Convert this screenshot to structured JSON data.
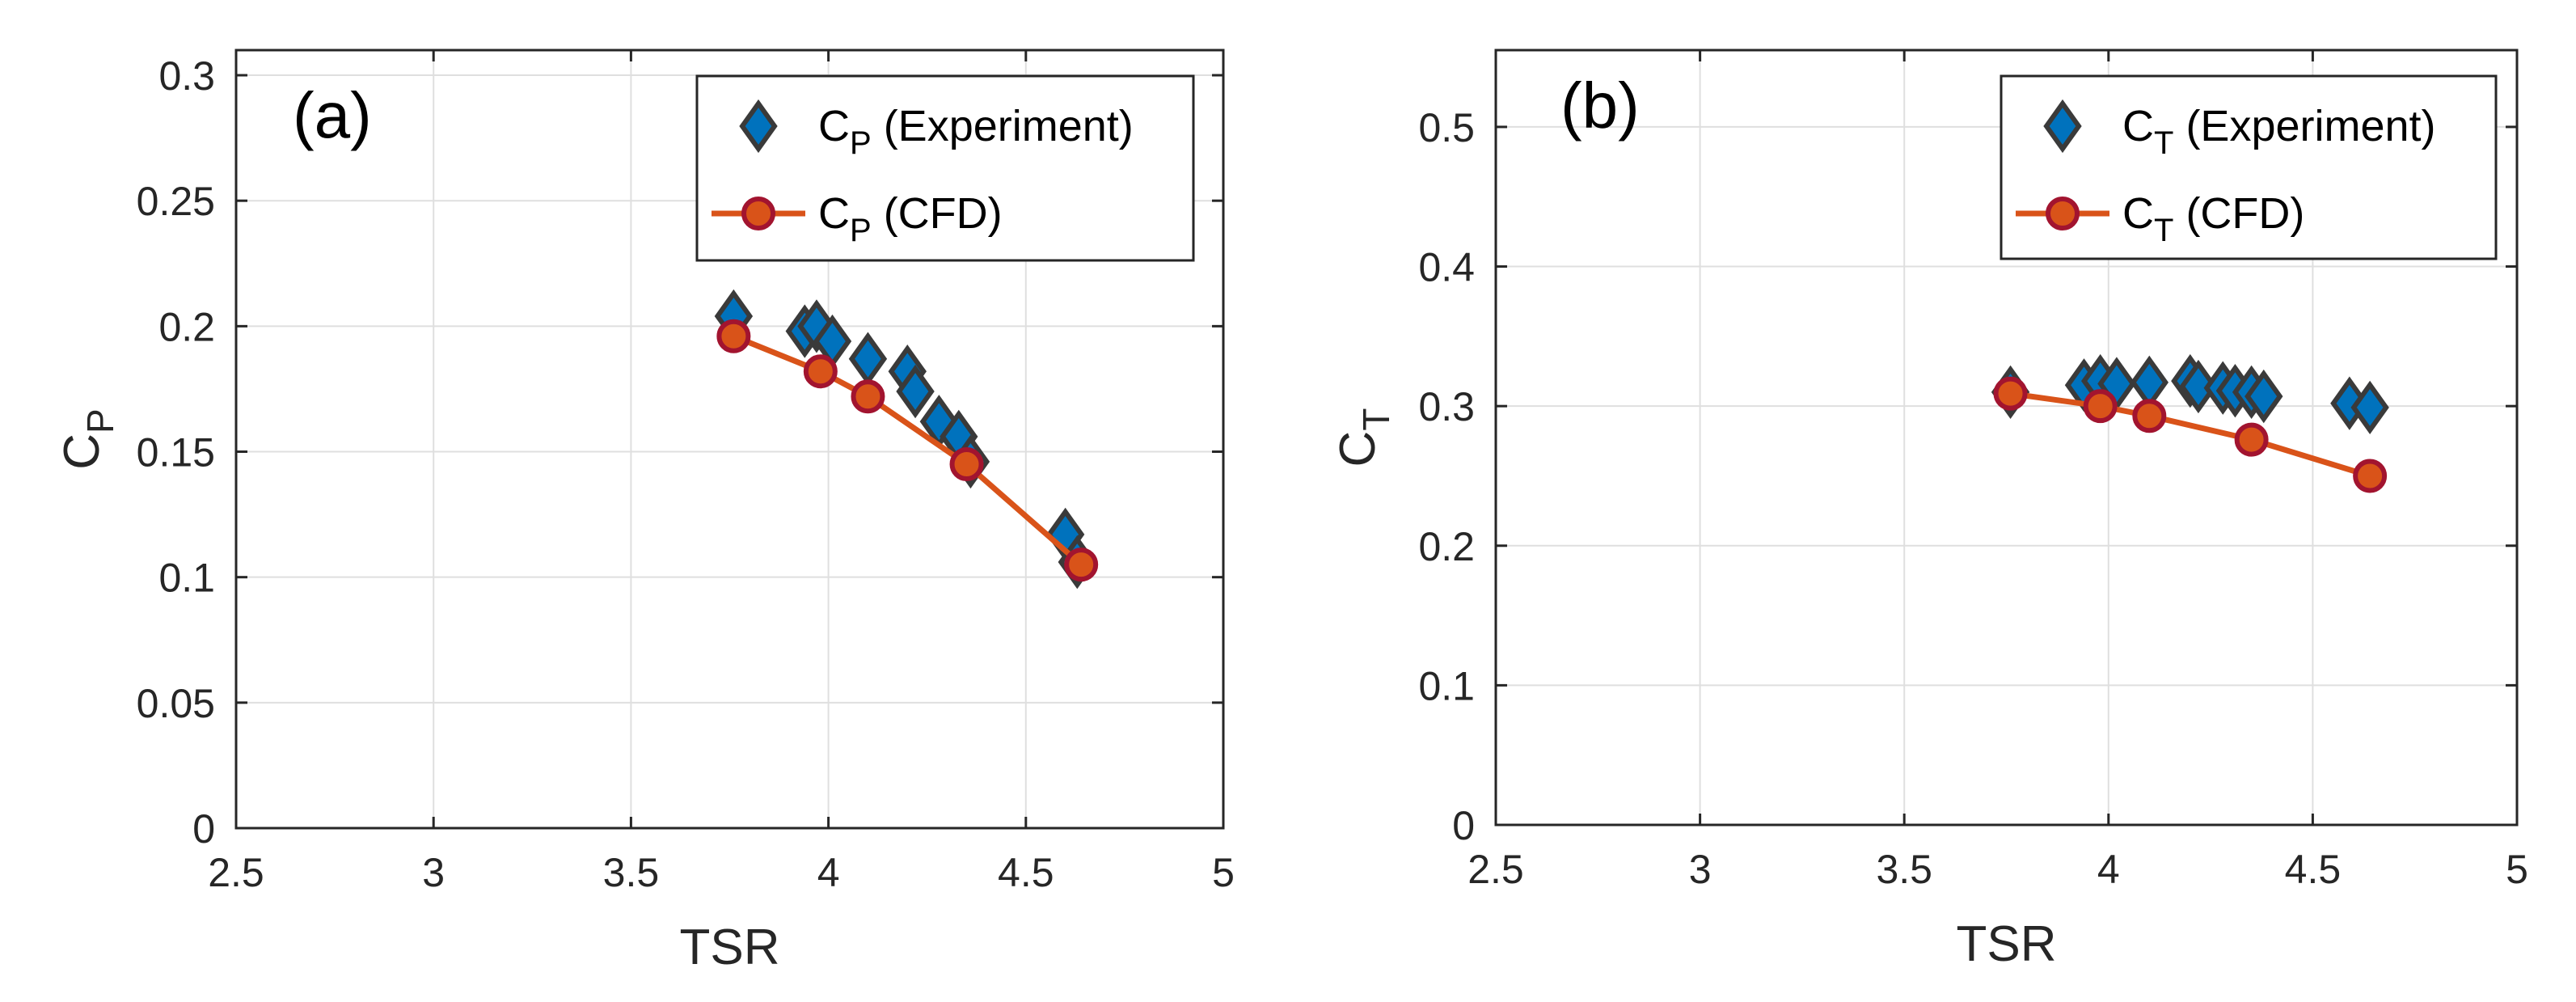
{
  "colors": {
    "experiment_fill": "#0072BD",
    "experiment_edge": "#3a3a3a",
    "cfd_line": "#D95319",
    "cfd_marker_edge": "#A2142F",
    "grid": "#dfdfdf",
    "axis": "#262626"
  },
  "chart_data": [
    {
      "type": "scatter",
      "panel_label": "(a)",
      "xlabel": "TSR",
      "ylabel_main": "C",
      "ylabel_sub": "P",
      "xlim": [
        2.5,
        5
      ],
      "ylim": [
        0,
        0.31
      ],
      "xticks": [
        2.5,
        3,
        3.5,
        4,
        4.5,
        5
      ],
      "xtick_labels": [
        "2.5",
        "3",
        "3.5",
        "4",
        "4.5",
        "5"
      ],
      "yticks": [
        0,
        0.05,
        0.1,
        0.15,
        0.2,
        0.25,
        0.3
      ],
      "ytick_labels": [
        "0",
        "0.05",
        "0.1",
        "0.15",
        "0.2",
        "0.25",
        "0.3"
      ],
      "grid": true,
      "legend_position": "top-right",
      "series": [
        {
          "name": "C_P (Experiment)",
          "legend_main": "C",
          "legend_sub": "P",
          "legend_rest": " (Experiment)",
          "marker": "diamond",
          "line": false,
          "x": [
            3.76,
            3.94,
            3.97,
            4.01,
            4.1,
            4.2,
            4.22,
            4.28,
            4.33,
            4.36,
            4.6,
            4.63
          ],
          "y": [
            0.204,
            0.198,
            0.2,
            0.194,
            0.187,
            0.182,
            0.174,
            0.162,
            0.156,
            0.146,
            0.117,
            0.106
          ]
        },
        {
          "name": "C_P (CFD)",
          "legend_main": "C",
          "legend_sub": "P",
          "legend_rest": " (CFD)",
          "marker": "circle",
          "line": true,
          "x": [
            3.76,
            3.98,
            4.1,
            4.35,
            4.64
          ],
          "y": [
            0.196,
            0.182,
            0.172,
            0.145,
            0.105
          ]
        }
      ]
    },
    {
      "type": "scatter",
      "panel_label": "(b)",
      "xlabel": "TSR",
      "ylabel_main": "C",
      "ylabel_sub": "T",
      "xlim": [
        2.5,
        5
      ],
      "ylim": [
        0,
        0.555
      ],
      "xticks": [
        2.5,
        3,
        3.5,
        4,
        4.5,
        5
      ],
      "xtick_labels": [
        "2.5",
        "3",
        "3.5",
        "4",
        "4.5",
        "5"
      ],
      "yticks": [
        0,
        0.1,
        0.2,
        0.3,
        0.4,
        0.5
      ],
      "ytick_labels": [
        "0",
        "0.1",
        "0.2",
        "0.3",
        "0.4",
        "0.5"
      ],
      "grid": true,
      "legend_position": "top-right",
      "series": [
        {
          "name": "C_T (Experiment)",
          "legend_main": "C",
          "legend_sub": "T",
          "legend_rest": " (Experiment)",
          "marker": "diamond",
          "line": false,
          "x": [
            3.76,
            3.94,
            3.98,
            4.02,
            4.1,
            4.2,
            4.22,
            4.28,
            4.31,
            4.35,
            4.38,
            4.59,
            4.64
          ],
          "y": [
            0.31,
            0.315,
            0.318,
            0.316,
            0.317,
            0.318,
            0.314,
            0.313,
            0.311,
            0.31,
            0.307,
            0.302,
            0.299
          ]
        },
        {
          "name": "C_T (CFD)",
          "legend_main": "C",
          "legend_sub": "T",
          "legend_rest": " (CFD)",
          "marker": "circle",
          "line": true,
          "x": [
            3.76,
            3.98,
            4.1,
            4.35,
            4.64
          ],
          "y": [
            0.309,
            0.3,
            0.293,
            0.276,
            0.25
          ]
        }
      ]
    }
  ]
}
